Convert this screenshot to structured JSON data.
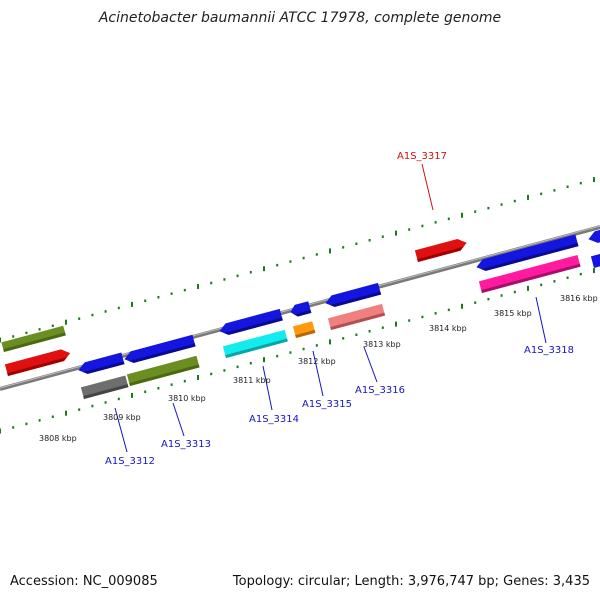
{
  "title": "Acinetobacter baumannii ATCC 17978, complete genome",
  "footer": {
    "accession": "Accession: NC_009085",
    "summary": "Topology: circular; Length: 3,976,747 bp; Genes: 3,435"
  },
  "colors": {
    "backbone": "#888888",
    "ticks": "#1a7a1a",
    "label_forward": "#d01010",
    "label_reverse": "#1515c0"
  },
  "scale_labels": [
    "3808 kbp",
    "3809 kbp",
    "3810 kbp",
    "3811 kbp",
    "3812 kbp",
    "3813 kbp",
    "3814 kbp",
    "3815 kbp",
    "3816 kbp"
  ],
  "gene_labels": [
    {
      "text": "A1S_3317",
      "strand": "forward"
    },
    {
      "text": "A1S_3312",
      "strand": "reverse"
    },
    {
      "text": "A1S_3313",
      "strand": "reverse"
    },
    {
      "text": "A1S_3314",
      "strand": "reverse"
    },
    {
      "text": "A1S_3315",
      "strand": "reverse"
    },
    {
      "text": "A1S_3316",
      "strand": "reverse"
    },
    {
      "text": "A1S_3318",
      "strand": "reverse"
    }
  ]
}
